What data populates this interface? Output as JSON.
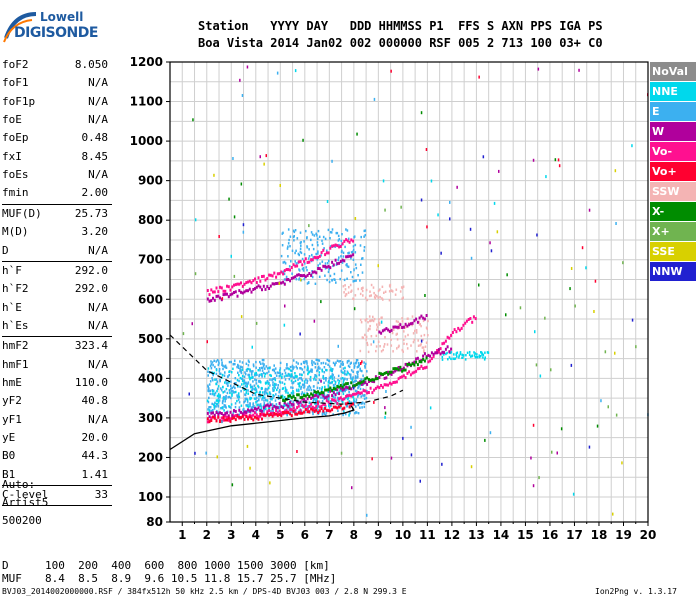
{
  "logo": {
    "line1": "Lowell",
    "line2": "DIGISONDE"
  },
  "header": {
    "line1": "Station   YYYY DAY   DDD HHMMSS P1  FFS S AXN PPS IGA PS",
    "line2": "Boa Vista 2014 Jan02 002 000000 RSF 005 2 713 100 03+ C0"
  },
  "params": {
    "group1": [
      {
        "name": "foF2",
        "value": "8.050"
      },
      {
        "name": "foF1",
        "value": "N/A"
      },
      {
        "name": "foF1p",
        "value": "N/A"
      },
      {
        "name": "foE",
        "value": "N/A"
      },
      {
        "name": "foEp",
        "value": "0.48"
      },
      {
        "name": "fxI",
        "value": "8.45"
      },
      {
        "name": "foEs",
        "value": "N/A"
      },
      {
        "name": "fmin",
        "value": "2.00"
      }
    ],
    "group2": [
      {
        "name": "MUF(D)",
        "value": "25.73"
      },
      {
        "name": "M(D)",
        "value": "3.20"
      },
      {
        "name": "D",
        "value": "N/A"
      }
    ],
    "group3": [
      {
        "name": "h`F",
        "value": "292.0"
      },
      {
        "name": "h`F2",
        "value": "292.0"
      },
      {
        "name": "h`E",
        "value": "N/A"
      },
      {
        "name": "h`Es",
        "value": "N/A"
      }
    ],
    "group4": [
      {
        "name": "hmF2",
        "value": "323.4"
      },
      {
        "name": "hmF1",
        "value": "N/A"
      },
      {
        "name": "hmE",
        "value": "110.0"
      },
      {
        "name": "yF2",
        "value": "40.8"
      },
      {
        "name": "yF1",
        "value": "N/A"
      },
      {
        "name": "yE",
        "value": "20.0"
      },
      {
        "name": "B0",
        "value": "44.3"
      },
      {
        "name": "B1",
        "value": "1.41"
      }
    ],
    "group5": [
      {
        "name": "C-level",
        "value": "33"
      }
    ]
  },
  "auto": {
    "label": "Auto:",
    "artist": "Artist5",
    "version": "500200"
  },
  "legend": [
    {
      "label": "NoVal",
      "color": "#8c8c8c"
    },
    {
      "label": "NNE",
      "color": "#00d8ec"
    },
    {
      "label": "E",
      "color": "#3cb0f0"
    },
    {
      "label": "W",
      "color": "#b0009c"
    },
    {
      "label": "Vo-",
      "color": "#ff1090"
    },
    {
      "label": "Vo+",
      "color": "#ff0030"
    },
    {
      "label": "SSW",
      "color": "#f4b4b4"
    },
    {
      "label": "X-",
      "color": "#008c00"
    },
    {
      "label": "X+",
      "color": "#70b450"
    },
    {
      "label": "SSE",
      "color": "#d8d000"
    },
    {
      "label": "NNW",
      "color": "#2020d0"
    }
  ],
  "chart_data": {
    "type": "scatter",
    "title": "",
    "xlabel": "",
    "ylabel": "",
    "xlim": [
      0.5,
      20
    ],
    "ylim": [
      80,
      1200
    ],
    "xticks": [
      "1",
      "2",
      "3",
      "4",
      "5",
      "6",
      "7",
      "8",
      "9",
      "10",
      "11",
      "12",
      "13",
      "14",
      "15",
      "16",
      "17",
      "18",
      "19",
      "20"
    ],
    "yticks": [
      "80",
      "100",
      "200",
      "300",
      "400",
      "500",
      "600",
      "700",
      "800",
      "900",
      "1000",
      "1100",
      "1200"
    ],
    "grid": true,
    "echo_clusters": [
      {
        "series": "E",
        "x_range": [
          2.0,
          8.5
        ],
        "y_range": [
          310,
          450
        ],
        "density": 900
      },
      {
        "series": "E",
        "x_range": [
          5.0,
          8.5
        ],
        "y_range": [
          640,
          780
        ],
        "density": 200
      },
      {
        "series": "NNE",
        "x_range": [
          2.0,
          8.0
        ],
        "y_range": [
          320,
          430
        ],
        "density": 250
      },
      {
        "series": "SSW",
        "x_range": [
          8.2,
          11.0
        ],
        "y_range": [
          470,
          560
        ],
        "density": 120
      },
      {
        "series": "SSW",
        "x_range": [
          7.5,
          10.0
        ],
        "y_range": [
          600,
          640
        ],
        "density": 60
      },
      {
        "series": "NNE",
        "x_range": [
          11.5,
          13.5
        ],
        "y_range": [
          450,
          470
        ],
        "density": 60
      }
    ],
    "traces": [
      {
        "series": "Vo-",
        "x": [
          2.0,
          3.0,
          4.0,
          5.0,
          6.0,
          7.0,
          8.0,
          9.0,
          10.0,
          11.0,
          12.0,
          13.0
        ],
        "y": [
          300,
          305,
          312,
          320,
          330,
          342,
          360,
          380,
          410,
          440,
          520,
          560
        ]
      },
      {
        "series": "W",
        "x": [
          2.0,
          3.0,
          4.0,
          5.0,
          6.0,
          7.0,
          8.0,
          9.0,
          10.0,
          11.0,
          12.0
        ],
        "y": [
          310,
          315,
          325,
          335,
          350,
          365,
          385,
          405,
          430,
          465,
          480
        ]
      },
      {
        "series": "X-",
        "x": [
          5.0,
          6.0,
          7.0,
          8.0,
          9.0,
          10.0,
          11.0
        ],
        "y": [
          350,
          360,
          375,
          390,
          410,
          430,
          450
        ]
      },
      {
        "series": "Vo+",
        "x": [
          2.0,
          3.0,
          4.0,
          5.0,
          6.0,
          7.0,
          8.0
        ],
        "y": [
          300,
          302,
          306,
          312,
          318,
          326,
          338
        ]
      },
      {
        "series": "W",
        "x": [
          2.0,
          3.0,
          4.0,
          5.0,
          6.0,
          7.0,
          8.0
        ],
        "y": [
          600,
          615,
          630,
          645,
          665,
          690,
          720
        ]
      },
      {
        "series": "Vo-",
        "x": [
          2.0,
          3.0,
          4.0,
          5.0,
          6.0,
          7.0,
          8.0
        ],
        "y": [
          620,
          635,
          650,
          670,
          700,
          730,
          760
        ]
      },
      {
        "series": "W",
        "x": [
          9.0,
          10.0,
          11.0
        ],
        "y": [
          520,
          540,
          560
        ]
      }
    ],
    "profile_solid": {
      "x": [
        0.5,
        1.5,
        3.0,
        4.5,
        6.0,
        7.0,
        7.6,
        8.0,
        7.9
      ],
      "y": [
        220,
        260,
        280,
        290,
        300,
        305,
        312,
        320,
        330
      ]
    },
    "profile_dashed": {
      "x": [
        0.5,
        2.0,
        4.0,
        6.0,
        7.5,
        8.5,
        9.5,
        10.0
      ],
      "y": [
        510,
        420,
        360,
        340,
        335,
        340,
        355,
        370
      ]
    }
  },
  "bottom": {
    "d_label": "D",
    "d_values": "100  200  400  600  800 1000 1500 3000 [km]",
    "muf_label": "MUF",
    "muf_values": "8.4  8.5  8.9  9.6 10.5 11.8 15.7 25.7 [MHz]",
    "footer_left": "BVJ03_2014002000000.RSF / 384fx512h 50 kHz 2.5 km / DPS-4D BVJ03 003 / 2.8 N 299.3 E",
    "footer_right": "Ion2Png v. 1.3.17"
  }
}
